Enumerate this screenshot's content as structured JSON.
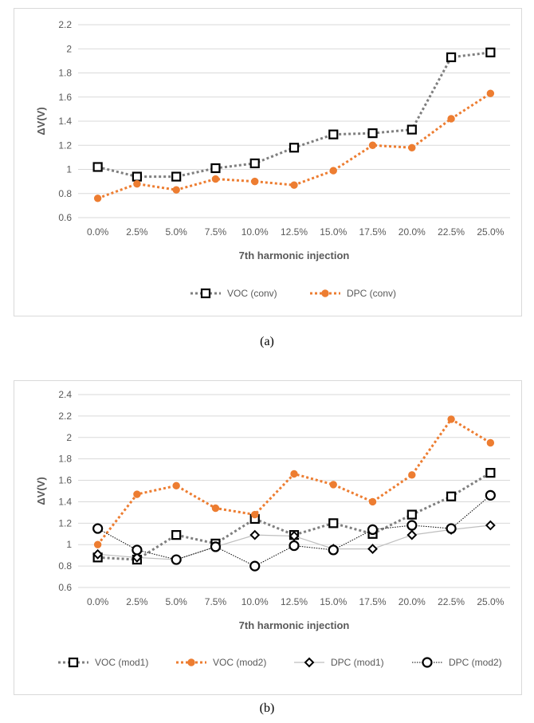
{
  "colors": {
    "black": "#000000",
    "gray": "#7f7f7f",
    "orange": "#ed7d31",
    "grid": "#d9d9d9",
    "axis_text": "#595959",
    "lightline": "#bfbfbf"
  },
  "captions": {
    "a": "(a)",
    "b": "(b)"
  },
  "chart_data": [
    {
      "type": "line",
      "title": "",
      "xlabel": "7th harmonic injection",
      "ylabel": "ΔV(V)",
      "categories": [
        "0.0%",
        "2.5%",
        "5.0%",
        "7.5%",
        "10.0%",
        "12.5%",
        "15.0%",
        "17.5%",
        "20.0%",
        "22.5%",
        "25.0%"
      ],
      "ylim": [
        0.6,
        2.2
      ],
      "yticks": [
        "0.6",
        "0.8",
        "1",
        "1.2",
        "1.4",
        "1.6",
        "1.8",
        "2",
        "2.2"
      ],
      "grid": true,
      "legend_position": "bottom",
      "series": [
        {
          "name": "VOC (conv)",
          "marker": "square",
          "line_color": "#7f7f7f",
          "marker_color": "#000000",
          "dash": "dotted",
          "values": [
            1.02,
            0.94,
            0.94,
            1.01,
            1.05,
            1.18,
            1.29,
            1.3,
            1.33,
            1.93,
            1.97
          ]
        },
        {
          "name": "DPC (conv)",
          "marker": "circle-filled",
          "line_color": "#ed7d31",
          "marker_color": "#ed7d31",
          "dash": "dotted",
          "values": [
            0.76,
            0.88,
            0.83,
            0.92,
            0.9,
            0.87,
            0.99,
            1.2,
            1.18,
            1.42,
            1.63
          ]
        }
      ]
    },
    {
      "type": "line",
      "title": "",
      "xlabel": "7th harmonic injection",
      "ylabel": "ΔV(V)",
      "categories": [
        "0.0%",
        "2.5%",
        "5.0%",
        "7.5%",
        "10.0%",
        "12.5%",
        "15.0%",
        "17.5%",
        "20.0%",
        "22.5%",
        "25.0%"
      ],
      "ylim": [
        0.6,
        2.4
      ],
      "yticks": [
        "0.6",
        "0.8",
        "1",
        "1.2",
        "1.4",
        "1.6",
        "1.8",
        "2",
        "2.2",
        "2.4"
      ],
      "grid": true,
      "legend_position": "bottom",
      "series": [
        {
          "name": "VOC (mod1)",
          "marker": "square",
          "line_color": "#7f7f7f",
          "marker_color": "#000000",
          "dash": "dotted",
          "values": [
            0.88,
            0.86,
            1.09,
            1.01,
            1.24,
            1.09,
            1.2,
            1.1,
            1.28,
            1.45,
            1.67
          ]
        },
        {
          "name": "VOC (mod2)",
          "marker": "circle-filled",
          "line_color": "#ed7d31",
          "marker_color": "#ed7d31",
          "dash": "dotted",
          "values": [
            1.0,
            1.47,
            1.55,
            1.34,
            1.28,
            1.66,
            1.56,
            1.4,
            1.65,
            2.17,
            1.95
          ]
        },
        {
          "name": "DPC (mod1)",
          "marker": "diamond",
          "line_color": "#bfbfbf",
          "marker_color": "#000000",
          "dash": "solid",
          "values": [
            0.91,
            0.88,
            0.86,
            0.98,
            1.09,
            1.08,
            0.96,
            0.96,
            1.09,
            1.14,
            1.18
          ]
        },
        {
          "name": "DPC (mod2)",
          "marker": "circle-open",
          "line_color": "#000000",
          "marker_color": "#000000",
          "dash": "thin-dotted",
          "values": [
            1.15,
            0.95,
            0.86,
            0.98,
            0.8,
            0.99,
            0.95,
            1.14,
            1.18,
            1.15,
            1.46
          ]
        }
      ]
    }
  ]
}
